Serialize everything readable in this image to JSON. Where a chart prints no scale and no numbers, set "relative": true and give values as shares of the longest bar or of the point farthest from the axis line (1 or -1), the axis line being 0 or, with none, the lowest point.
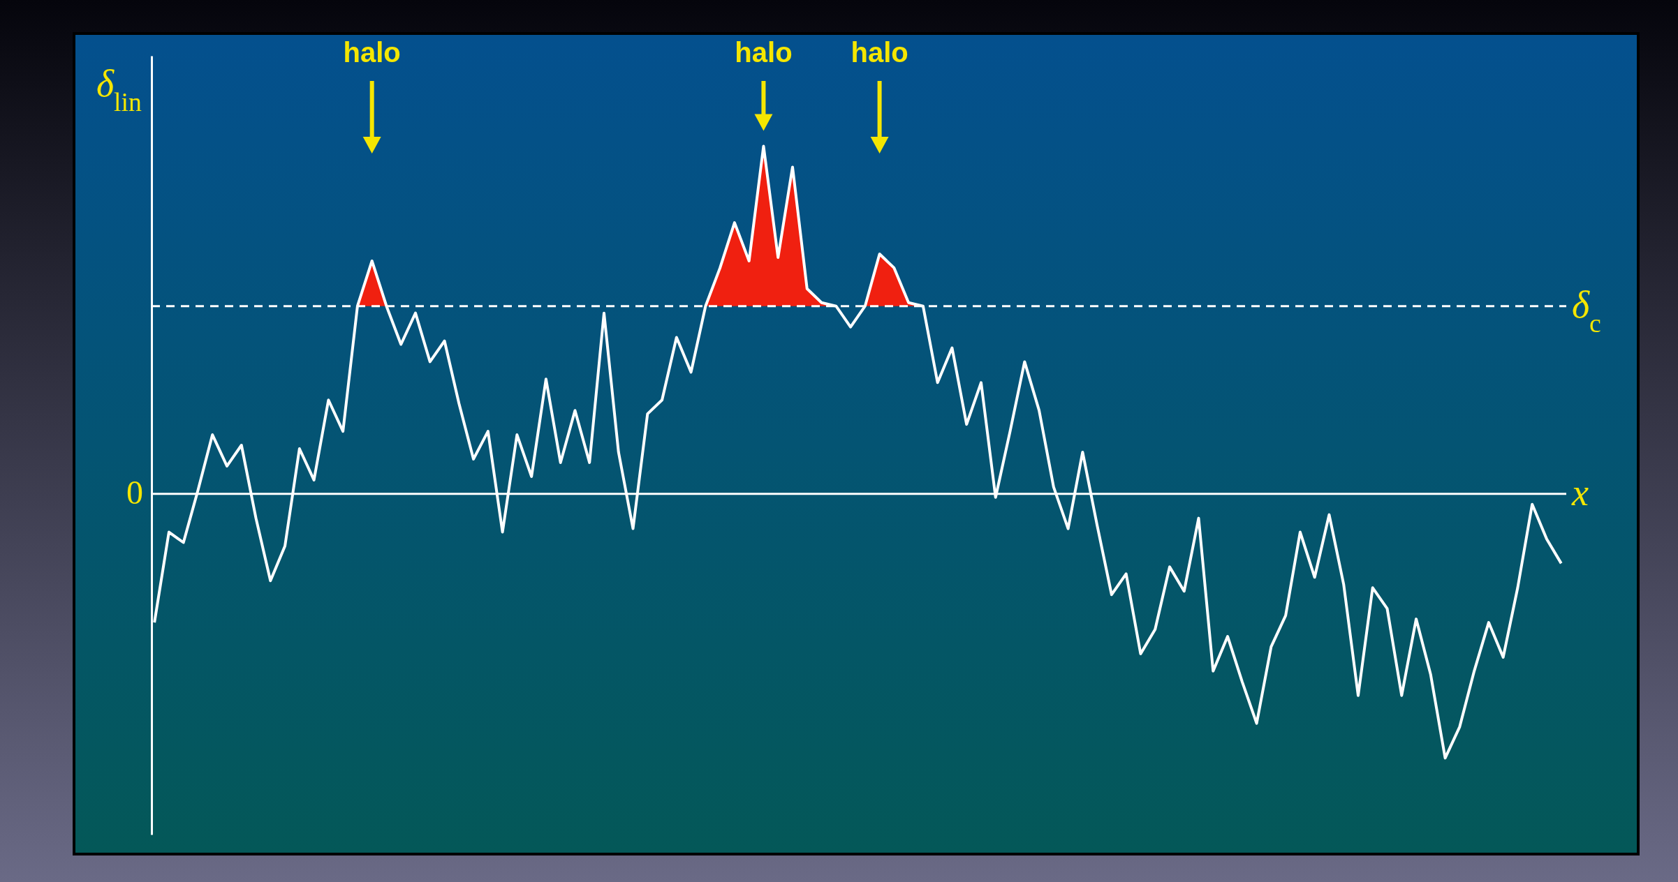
{
  "chart_data": {
    "type": "line",
    "relative": true,
    "xlabel": "x⃗",
    "ylabel": "δ$_{lin}$",
    "categories": [
      null,
      null,
      null,
      null,
      null,
      null,
      null,
      null,
      null,
      null,
      null,
      null,
      null,
      null,
      null,
      null,
      null,
      null,
      null,
      null,
      null,
      null,
      null,
      null,
      null,
      null,
      null,
      null,
      null,
      null,
      null,
      null,
      null,
      null,
      null,
      null,
      null,
      null,
      null,
      null,
      null,
      null,
      null,
      null,
      null,
      null,
      null,
      null,
      null,
      null,
      null,
      null,
      null,
      null,
      null,
      null,
      null,
      null,
      null,
      null,
      null,
      null,
      null,
      null,
      null,
      null,
      null,
      null,
      null,
      null,
      null,
      null,
      null,
      null,
      null,
      null,
      null,
      null,
      null,
      null,
      null,
      null,
      null,
      null,
      null,
      null,
      null,
      null,
      null,
      null,
      null,
      null,
      null,
      null,
      null,
      null,
      null,
      null
    ],
    "series": [
      {
        "color": "#ffffff",
        "values": [
          -0.37,
          -0.11,
          -0.14,
          0.01,
          0.17,
          0.08,
          0.14,
          -0.07,
          -0.25,
          -0.15,
          0.13,
          0.04,
          0.27,
          0.18,
          0.54,
          0.67,
          0.54,
          0.43,
          0.52,
          0.38,
          0.44,
          0.26,
          0.1,
          0.18,
          -0.11,
          0.17,
          0.05,
          0.33,
          0.09,
          0.24,
          0.09,
          0.52,
          0.12,
          -0.1,
          0.23,
          0.27,
          0.45,
          0.35,
          0.54,
          0.65,
          0.78,
          0.67,
          1,
          0.68,
          0.94,
          0.59,
          0.55,
          0.54,
          0.48,
          0.54,
          0.69,
          0.65,
          0.55,
          0.54,
          0.32,
          0.42,
          0.2,
          0.32,
          -0.01,
          0.18,
          0.38,
          0.24,
          0.02,
          -0.1,
          0.12,
          -0.09,
          -0.29,
          -0.23,
          -0.46,
          -0.39,
          -0.21,
          -0.28,
          -0.07,
          -0.51,
          -0.41,
          -0.54,
          -0.66,
          -0.44,
          -0.35,
          -0.11,
          -0.24,
          -0.06,
          -0.26,
          -0.58,
          -0.27,
          -0.33,
          -0.58,
          -0.36,
          -0.52,
          -0.76,
          -0.67,
          -0.51,
          -0.37,
          -0.47,
          -0.27,
          -0.03,
          -0.13,
          -0.2
        ]
      },
      {
        "type": "area",
        "color": "#f02010",
        "values": [
          null,
          null,
          null,
          null,
          null,
          null,
          null,
          null,
          null,
          null,
          null,
          null,
          null,
          null,
          0.54,
          0.67,
          0.54,
          null,
          null,
          null,
          null,
          null,
          null,
          null,
          null,
          null,
          null,
          null,
          null,
          null,
          null,
          null,
          null,
          null,
          null,
          null,
          null,
          null,
          0.54,
          0.65,
          0.78,
          0.67,
          1,
          0.68,
          0.94,
          0.59,
          0.55,
          0.54,
          null,
          0.54,
          0.69,
          0.65,
          0.55,
          0.54,
          null,
          null,
          null,
          null,
          null,
          null,
          null,
          null,
          null,
          null,
          null,
          null,
          null,
          null,
          null,
          null,
          null,
          null,
          null,
          null,
          null,
          null,
          null,
          null,
          null,
          null,
          null,
          null,
          null,
          null,
          null,
          null,
          null,
          null,
          null,
          null,
          null,
          null,
          null,
          null,
          null,
          null,
          null,
          null
        ]
      }
    ],
    "ref_lines": [
      {
        "axis": "y",
        "value": 0.54,
        "label": "δ$_{c}$",
        "color": "#ffffff",
        "line_style": "dashed"
      }
    ],
    "annotations": [
      "halo",
      "halo",
      "halo",
      "0"
    ]
  }
}
